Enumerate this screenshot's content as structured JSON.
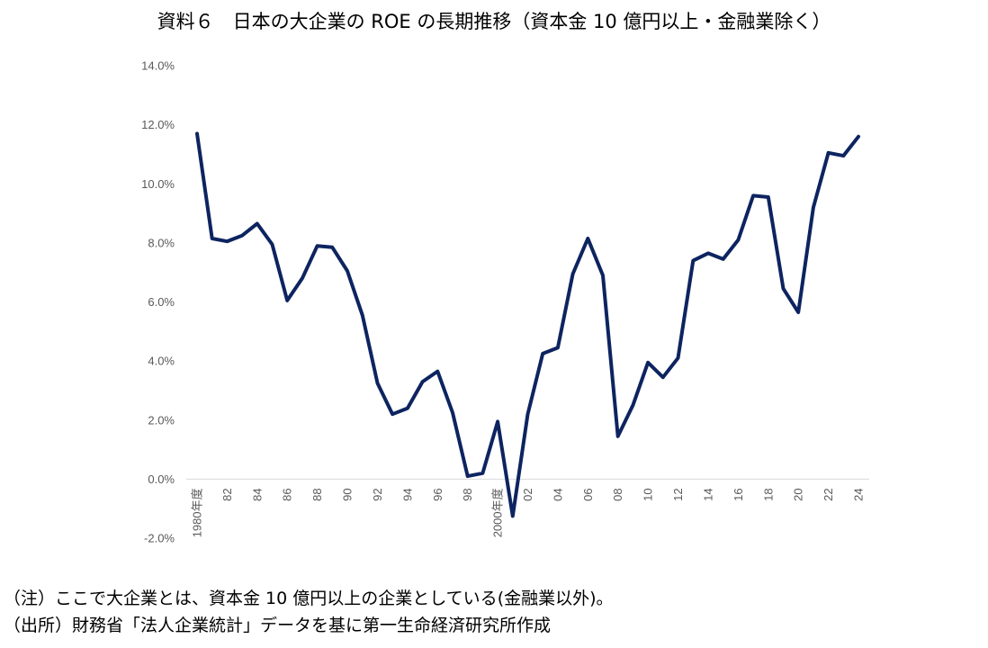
{
  "title": "資料６　日本の大企業の ROE の長期推移（資本金 10 億円以上・金融業除く）",
  "notes": [
    "（注）ここで大企業とは、資本金 10 億円以上の企業としている(金融業以外)。",
    "（出所）財務省「法人企業統計」データを基に第一生命経済研究所作成"
  ],
  "colors": {
    "line": "#0d2460",
    "axis": "#d9d9d9",
    "tick_text": "#595959"
  },
  "chart_data": {
    "type": "line",
    "title": "",
    "xlabel": "",
    "ylabel": "",
    "ylim": [
      -2,
      14
    ],
    "yticks": [
      -2,
      0,
      2,
      4,
      6,
      8,
      10,
      12,
      14
    ],
    "ytick_labels": [
      "-2.0%",
      "0.0%",
      "2.0%",
      "4.0%",
      "6.0%",
      "8.0%",
      "10.0%",
      "12.0%",
      "14.0%"
    ],
    "grid": false,
    "legend": "none",
    "x": [
      1980,
      1981,
      1982,
      1983,
      1984,
      1985,
      1986,
      1987,
      1988,
      1989,
      1990,
      1991,
      1992,
      1993,
      1994,
      1995,
      1996,
      1997,
      1998,
      1999,
      2000,
      2001,
      2002,
      2003,
      2004,
      2005,
      2006,
      2007,
      2008,
      2009,
      2010,
      2011,
      2012,
      2013,
      2014,
      2015,
      2016,
      2017,
      2018,
      2019,
      2020,
      2021,
      2022,
      2023,
      2024
    ],
    "xtick_labels": [
      "1980年度",
      "",
      "82",
      "",
      "84",
      "",
      "86",
      "",
      "88",
      "",
      "90",
      "",
      "92",
      "",
      "94",
      "",
      "96",
      "",
      "98",
      "",
      "2000年度",
      "",
      "02",
      "",
      "04",
      "",
      "06",
      "",
      "08",
      "",
      "10",
      "",
      "12",
      "",
      "14",
      "",
      "16",
      "",
      "18",
      "",
      "20",
      "",
      "22",
      "",
      "24"
    ],
    "series": [
      {
        "values": [
          11.7,
          8.15,
          8.05,
          8.25,
          8.65,
          7.95,
          6.05,
          6.8,
          7.9,
          7.85,
          7.05,
          5.55,
          3.25,
          2.2,
          2.4,
          3.3,
          3.65,
          2.25,
          0.1,
          0.2,
          1.95,
          -1.25,
          2.2,
          4.25,
          4.45,
          6.95,
          8.15,
          6.9,
          1.45,
          2.5,
          3.95,
          3.45,
          4.1,
          7.4,
          7.65,
          7.45,
          8.1,
          9.6,
          9.55,
          6.45,
          5.65,
          9.2,
          11.05,
          10.95,
          11.6
        ]
      }
    ]
  }
}
